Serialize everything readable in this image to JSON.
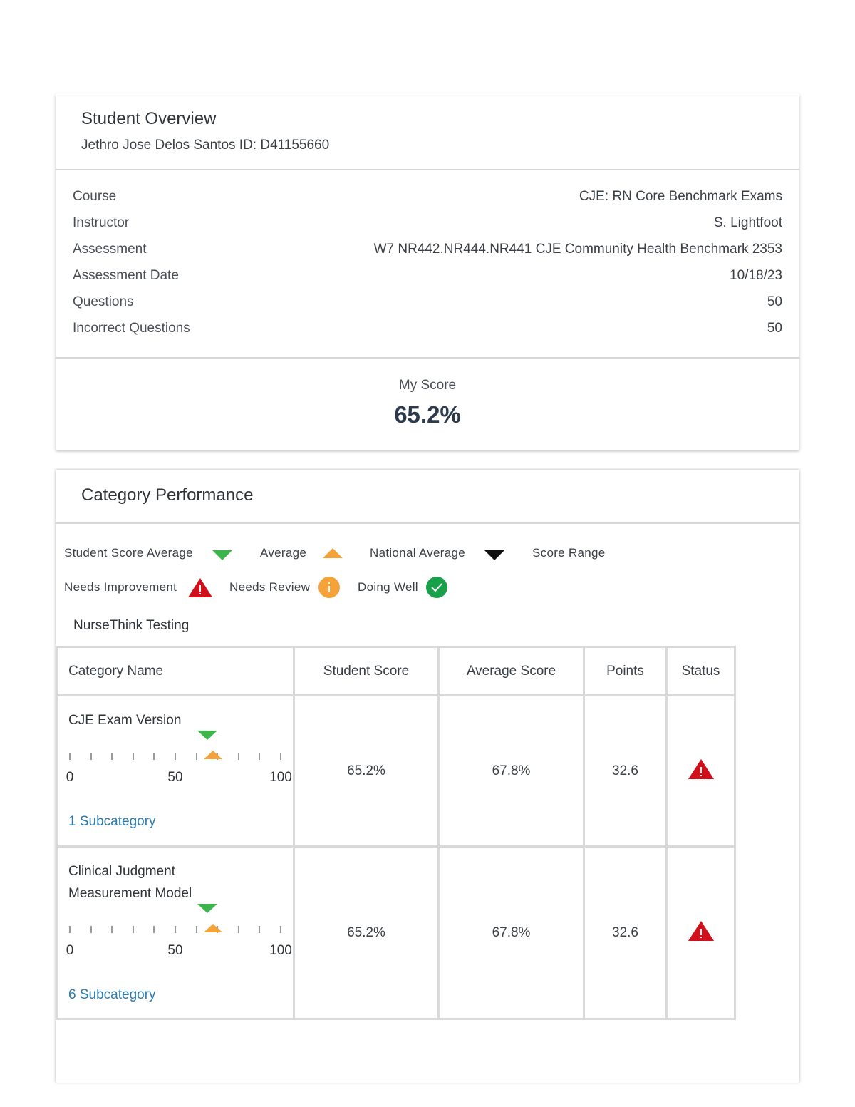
{
  "overview": {
    "title": "Student Overview",
    "student_line": "Jethro Jose Delos Santos ID: D41155660",
    "rows": [
      {
        "label": "Course",
        "value": "CJE: RN Core Benchmark Exams"
      },
      {
        "label": "Instructor",
        "value": "S. Lightfoot"
      },
      {
        "label": "Assessment",
        "value": "W7 NR442.NR444.NR441 CJE Community Health Benchmark 2353"
      },
      {
        "label": "Assessment Date",
        "value": "10/18/23"
      },
      {
        "label": "Questions",
        "value": "50"
      },
      {
        "label": "Incorrect Questions",
        "value": "50"
      }
    ],
    "score_label": "My Score",
    "score_value": "65.2%"
  },
  "category": {
    "title": "Category Performance",
    "legend": {
      "student_avg": "Student Score Average",
      "average": "Average",
      "national_avg": "National Average",
      "score_range": "Score Range",
      "needs_improvement": "Needs Improvement",
      "needs_review": "Needs Review",
      "doing_well": "Doing Well"
    },
    "icons": {
      "student_avg": "green-triangle-down-icon",
      "average": "orange-triangle-up-icon",
      "national_avg": "black-triangle-down-icon",
      "needs_improvement": "red-warning-triangle-icon",
      "needs_review": "orange-info-circle-icon",
      "doing_well": "green-check-circle-icon"
    },
    "colors": {
      "green": "#3cb54a",
      "orange": "#f5a23a",
      "red": "#d0111b",
      "black": "#111111",
      "link": "#2a7ab0"
    },
    "group_label": "NurseThink Testing",
    "table": {
      "headers": [
        "Category Name",
        "Student Score",
        "Average Score",
        "Points",
        "Status"
      ],
      "scale_labels": [
        "0",
        "50",
        "100"
      ],
      "rows": [
        {
          "name": "CJE Exam Version",
          "student_score": "65.2%",
          "average_score": "67.8%",
          "points": "32.6",
          "student_marker": 65.2,
          "average_marker": 67.8,
          "subcategory": "1 Subcategory",
          "status_icon": "red-warning-triangle-icon"
        },
        {
          "name": "Clinical Judgment Measurement Model",
          "student_score": "65.2%",
          "average_score": "67.8%",
          "points": "32.6",
          "student_marker": 65.2,
          "average_marker": 67.8,
          "subcategory": "6 Subcategory",
          "status_icon": "red-warning-triangle-icon"
        }
      ]
    }
  }
}
